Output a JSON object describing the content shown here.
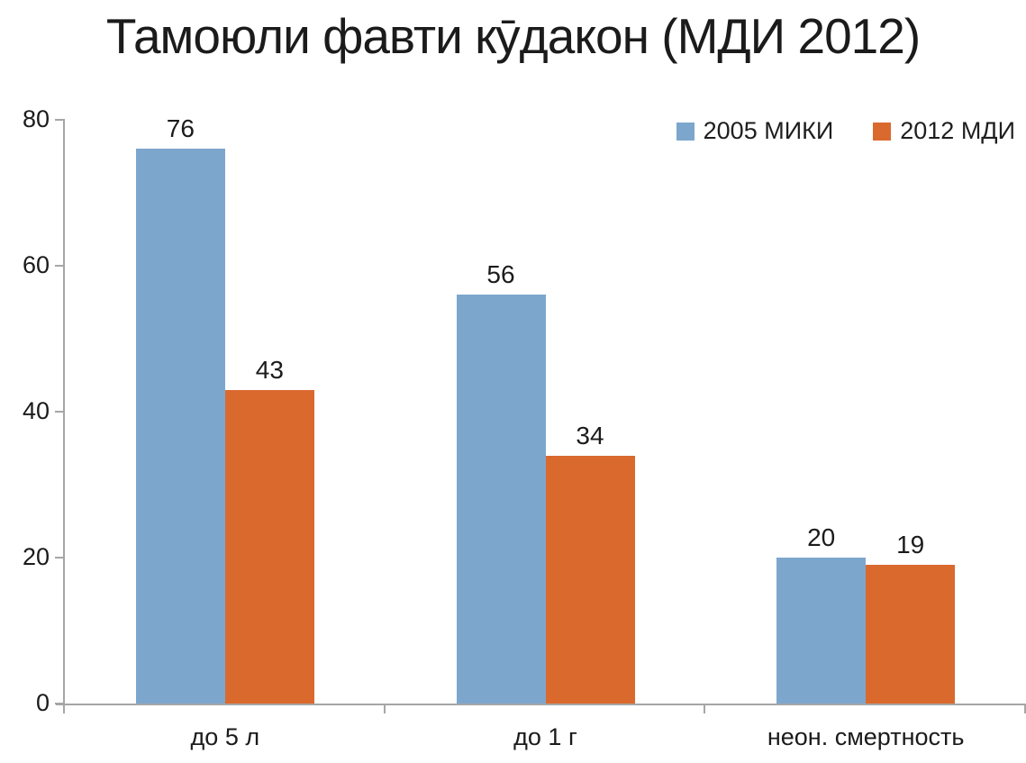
{
  "title": "Тамоюли фавти кӯдакон (МДИ 2012)",
  "colors": {
    "series_2005": "#7DA6CD",
    "series_2012": "#DA692E",
    "axis": "#A6A6A6",
    "text": "#1B1B1B"
  },
  "chart_data": {
    "type": "bar",
    "title": "Тамоюли фавти кӯдакон (МДИ 2012)",
    "categories": [
      "до 5 л",
      "до 1 г",
      "неон. смертность"
    ],
    "series": [
      {
        "name": "2005 МИКИ",
        "color": "#7DA6CD",
        "values": [
          76,
          56,
          20
        ]
      },
      {
        "name": "2012 МДИ",
        "color": "#DA692E",
        "values": [
          43,
          34,
          19
        ]
      }
    ],
    "xlabel": "",
    "ylabel": "",
    "ylim": [
      0,
      80
    ],
    "yticks": [
      0,
      20,
      40,
      60,
      80
    ],
    "grid": false,
    "legend_position": "top-right",
    "data_labels": true
  }
}
